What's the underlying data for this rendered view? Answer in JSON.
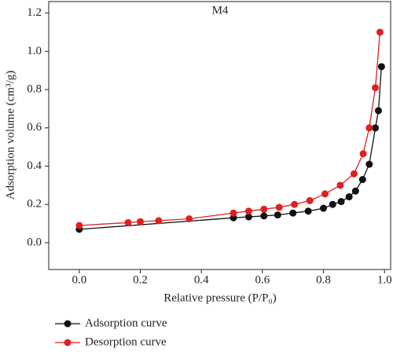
{
  "chart_data": {
    "type": "line",
    "title": "M4",
    "x_label": "Relative pressure (P/P₀)",
    "y_label": "Adsorption volume (cm³/g)",
    "xlim": [
      -0.1,
      1.02
    ],
    "ylim": [
      -0.14,
      1.26
    ],
    "xticks": [
      {
        "value": 0,
        "label": "0.0"
      },
      0.2,
      0.4,
      0.6,
      0.8,
      {
        "value": 1,
        "label": "1.0"
      }
    ],
    "yticks": [
      {
        "value": 0,
        "label": "0.0"
      },
      0.2,
      0.4,
      0.6,
      0.8,
      {
        "value": 1,
        "label": "1.0"
      },
      1.2
    ],
    "legend": "bottom-left",
    "series": [
      {
        "name": "Adsorption curve",
        "color": "#111111",
        "x": [
          0.0,
          0.505,
          0.555,
          0.605,
          0.65,
          0.7,
          0.75,
          0.8,
          0.83,
          0.858,
          0.884,
          0.905,
          0.928,
          0.95,
          0.97,
          0.98,
          0.99
        ],
        "values": [
          0.07,
          0.13,
          0.135,
          0.14,
          0.145,
          0.155,
          0.165,
          0.18,
          0.2,
          0.215,
          0.24,
          0.27,
          0.33,
          0.41,
          0.6,
          0.69,
          0.92
        ]
      },
      {
        "name": "Desorption curve",
        "color": "#e02020",
        "x": [
          0.0,
          0.16,
          0.2,
          0.26,
          0.36,
          0.505,
          0.555,
          0.605,
          0.655,
          0.705,
          0.755,
          0.805,
          0.855,
          0.9,
          0.93,
          0.95,
          0.97,
          0.985
        ],
        "values": [
          0.09,
          0.105,
          0.11,
          0.115,
          0.125,
          0.155,
          0.165,
          0.175,
          0.185,
          0.2,
          0.22,
          0.255,
          0.3,
          0.36,
          0.465,
          0.6,
          0.81,
          1.1
        ]
      }
    ]
  }
}
